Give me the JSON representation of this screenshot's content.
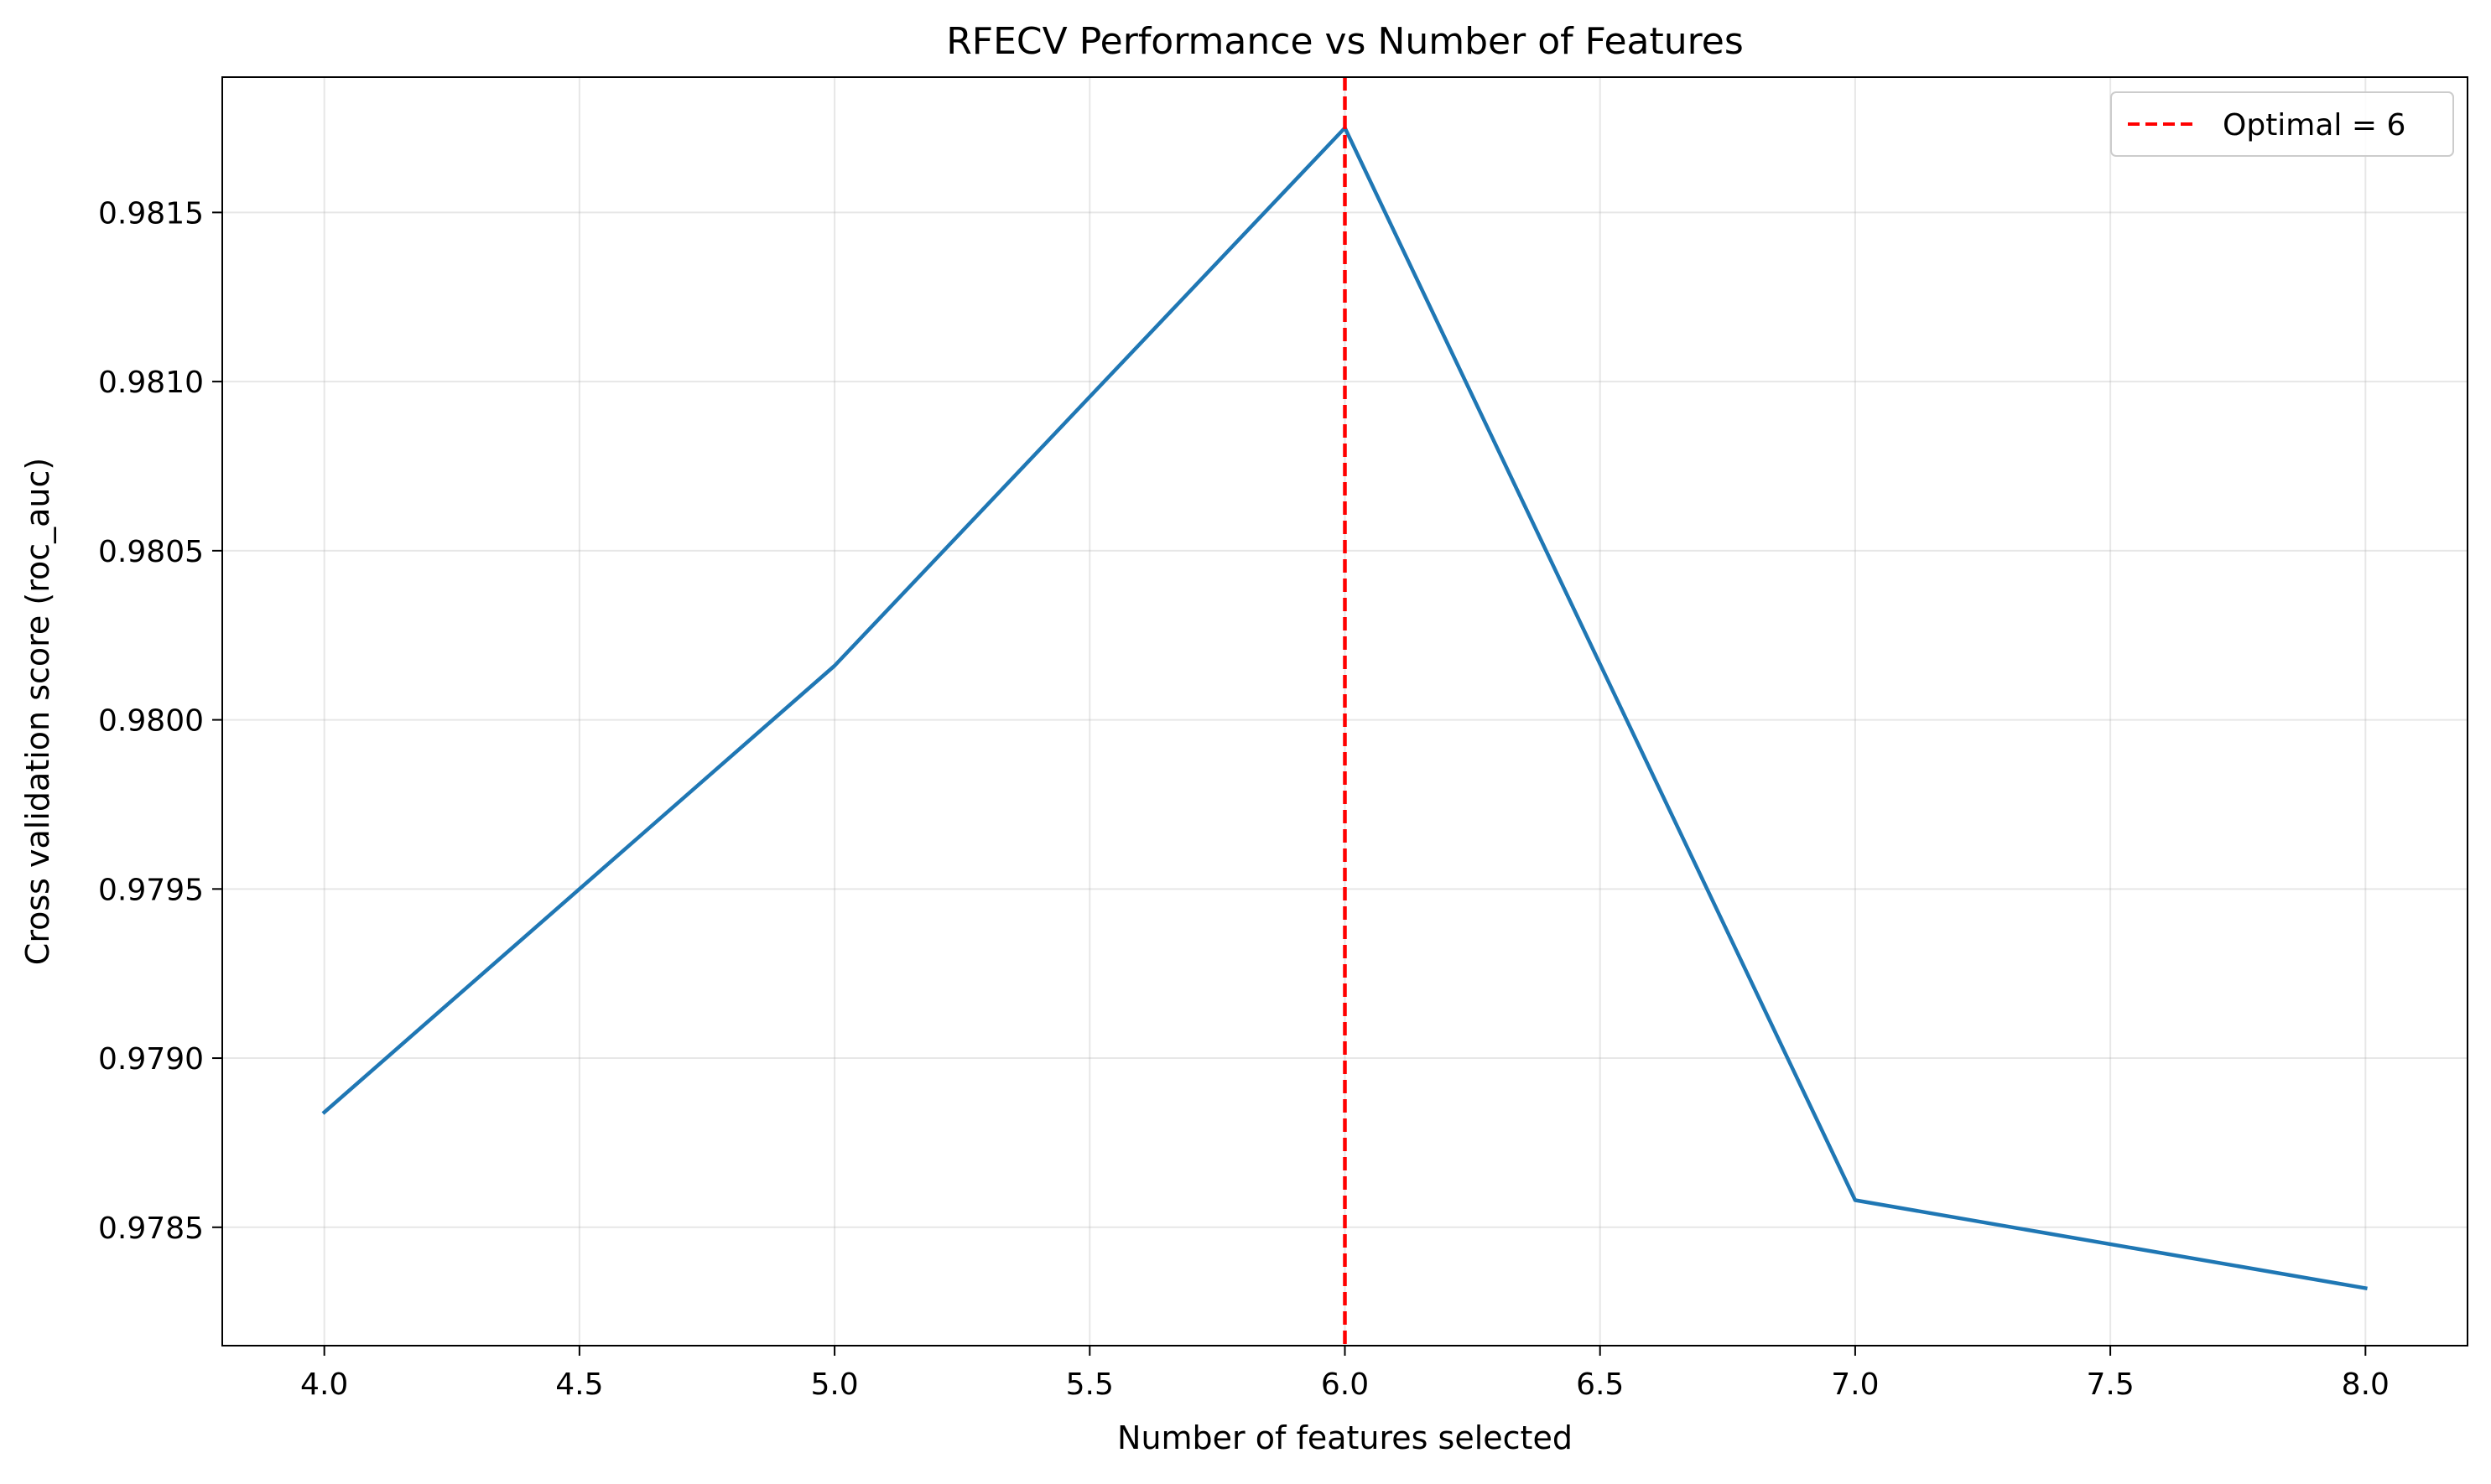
{
  "chart_data": {
    "type": "line",
    "title": "RFECV Performance vs Number of Features",
    "xlabel": "Number of features selected",
    "ylabel": "Cross validation score (roc_auc)",
    "xlim": [
      3.8,
      8.2
    ],
    "ylim": [
      0.97815,
      0.9819
    ],
    "xticks": [
      4.0,
      4.5,
      5.0,
      5.5,
      6.0,
      6.5,
      7.0,
      7.5,
      8.0
    ],
    "xtick_labels": [
      "4.0",
      "4.5",
      "5.0",
      "5.5",
      "6.0",
      "6.5",
      "7.0",
      "7.5",
      "8.0"
    ],
    "yticks": [
      0.9785,
      0.979,
      0.9795,
      0.98,
      0.9805,
      0.981,
      0.9815
    ],
    "ytick_labels": [
      "0.9785",
      "0.9790",
      "0.9795",
      "0.9800",
      "0.9805",
      "0.9810",
      "0.9815"
    ],
    "grid": true,
    "legend_position": "top-right",
    "series": [
      {
        "name": "",
        "color": "#1f77b4",
        "x": [
          4,
          5,
          6,
          7,
          8
        ],
        "y": [
          0.97884,
          0.98016,
          0.98175,
          0.97858,
          0.97832
        ]
      }
    ],
    "vline": {
      "x": 6,
      "label": "Optimal = 6",
      "color": "#ff0000",
      "style": "dashed"
    }
  }
}
